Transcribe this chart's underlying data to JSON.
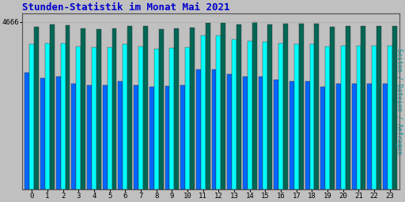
{
  "title": "Stunden-Statistik im Monat Mai 2021",
  "title_color": "#0000cc",
  "title_fontsize": 9,
  "ylabel_right": "Seiten / Dateien / Anfragen",
  "ylabel_right_color": "#009999",
  "background_color": "#c0c0c0",
  "plot_bg_color": "#c0c0c0",
  "hours": [
    0,
    1,
    2,
    3,
    4,
    5,
    6,
    7,
    8,
    9,
    10,
    11,
    12,
    13,
    14,
    15,
    16,
    17,
    18,
    19,
    20,
    21,
    22,
    23
  ],
  "seiten": [
    3250,
    3100,
    3150,
    2950,
    2900,
    2900,
    3000,
    2900,
    2850,
    2870,
    2900,
    3350,
    3350,
    3200,
    3150,
    3150,
    3050,
    3000,
    3000,
    2850,
    2950,
    2950,
    2950,
    2950
  ],
  "dateien": [
    4050,
    4070,
    4060,
    3980,
    3950,
    3960,
    4040,
    3980,
    3920,
    3930,
    3950,
    4280,
    4290,
    4180,
    4130,
    4100,
    4070,
    4040,
    4050,
    3970,
    4000,
    4000,
    4000,
    4000
  ],
  "anfragen": [
    4530,
    4590,
    4565,
    4490,
    4465,
    4475,
    4545,
    4545,
    4465,
    4475,
    4495,
    4635,
    4645,
    4585,
    4655,
    4600,
    4610,
    4610,
    4610,
    4525,
    4555,
    4555,
    4555,
    4555
  ],
  "seiten_color": "#0066ff",
  "dateien_color": "#00ffff",
  "anfragen_color": "#006655",
  "bar_edge_color": "#333333",
  "ylim_min": 0,
  "ylim_max": 4900,
  "ytick_val": 4666,
  "ytick_label": "4666",
  "grid_color": "#aaaaaa",
  "font_family": "monospace",
  "bar_width": 0.3
}
